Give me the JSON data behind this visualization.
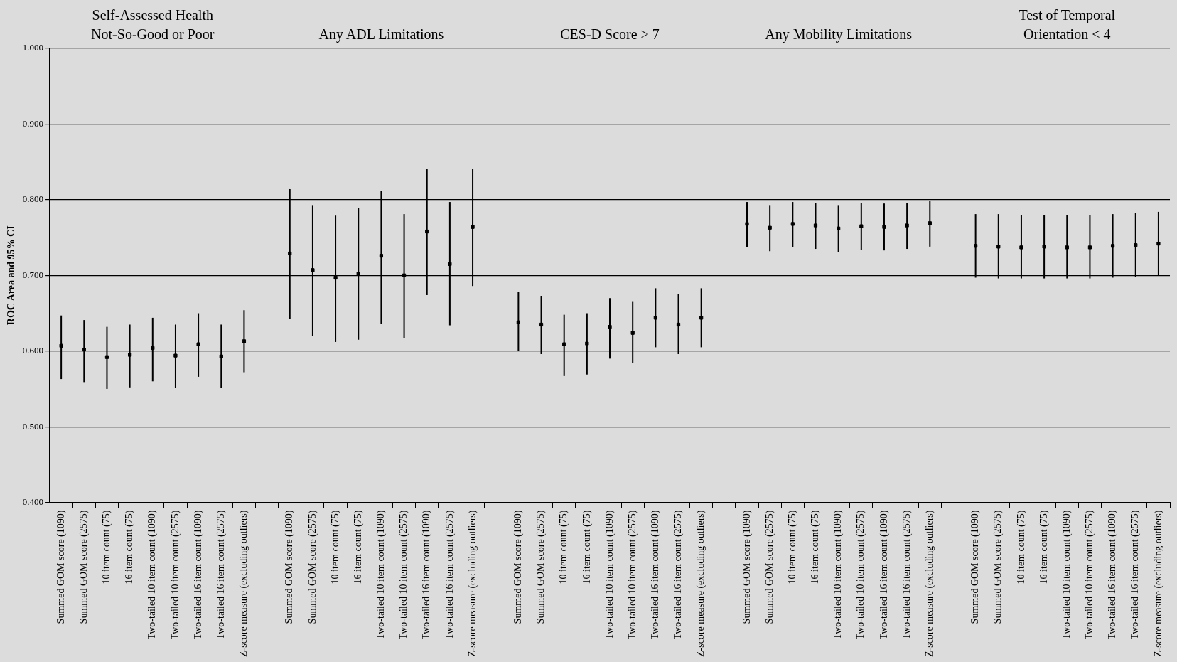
{
  "chart_data": {
    "type": "scatter",
    "ylabel": "ROC Area and 95% CI",
    "annotations": [
      "Self-Assessed Health\nNot-So-Good or Poor",
      "Any ADL Limitations",
      "CES-D Score > 7",
      "Any Mobility Limitations",
      "Test of Temporal\nOrientation < 4"
    ],
    "categories": [
      "Summed GOM score (1090)",
      "Summed GOM score (2575)",
      "10 item count (75)",
      "16 item count (75)",
      "Two-tailed 10 item count (1090)",
      "Two-tailed 10 item count (2575)",
      "Two-tailed 16 item count (1090)",
      "Two-tailed 16 item count (2575)",
      "Z-score measure (excluding outliers)",
      null,
      "Summed GOM score (1090)",
      "Summed GOM score (2575)",
      "10 item count (75)",
      "16 item count (75)",
      "Two-tailed 10 item count (1090)",
      "Two-tailed 10 item count (2575)",
      "Two-tailed 16 item count (1090)",
      "Two-tailed 16 item count (2575)",
      "Z-score measure (excluding outliers)",
      null,
      "Summed GOM score (1090)",
      "Summed GOM score (2575)",
      "10 item count (75)",
      "16 item count (75)",
      "Two-tailed 10 item count (1090)",
      "Two-tailed 10 item count (2575)",
      "Two-tailed 16 item count (1090)",
      "Two-tailed 16 item count (2575)",
      "Z-score measure (excluding outliers)",
      null,
      "Summed GOM score (1090)",
      "Summed GOM score (2575)",
      "10 item count (75)",
      "16 item count (75)",
      "Two-tailed 10 item count (1090)",
      "Two-tailed 10 item count (2575)",
      "Two-tailed 16 item count (1090)",
      "Two-tailed 16 item count (2575)",
      "Z-score measure (excluding outliers)",
      null,
      "Summed GOM score (1090)",
      "Summed GOM score (2575)",
      "10 item count (75)",
      "16 item count (75)",
      "Two-tailed 10 item count (1090)",
      "Two-tailed 10 item count (2575)",
      "Two-tailed 16 item count (1090)",
      "Two-tailed 16 item count (2575)",
      "Z-score measure (excluding outliers)"
    ],
    "color": "#000000",
    "values": [
      0.607,
      0.602,
      0.592,
      0.595,
      0.604,
      0.594,
      0.609,
      0.593,
      0.613,
      null,
      0.729,
      0.707,
      0.697,
      0.702,
      0.726,
      0.7,
      0.758,
      0.715,
      0.764,
      null,
      0.638,
      0.635,
      0.609,
      0.61,
      0.632,
      0.624,
      0.644,
      0.635,
      0.644,
      null,
      0.768,
      0.763,
      0.768,
      0.766,
      0.762,
      0.765,
      0.764,
      0.766,
      0.769,
      null,
      0.739,
      0.738,
      0.737,
      0.738,
      0.737,
      0.737,
      0.739,
      0.74,
      0.742
    ],
    "errors": [
      [
        0.563,
        0.647
      ],
      [
        0.559,
        0.641
      ],
      [
        0.55,
        0.632
      ],
      [
        0.552,
        0.635
      ],
      [
        0.56,
        0.644
      ],
      [
        0.551,
        0.635
      ],
      [
        0.566,
        0.65
      ],
      [
        0.551,
        0.635
      ],
      [
        0.572,
        0.654
      ],
      null,
      [
        0.642,
        0.814
      ],
      [
        0.62,
        0.792
      ],
      [
        0.612,
        0.779
      ],
      [
        0.615,
        0.789
      ],
      [
        0.636,
        0.812
      ],
      [
        0.617,
        0.781
      ],
      [
        0.674,
        0.841
      ],
      [
        0.634,
        0.797
      ],
      [
        0.686,
        0.841
      ],
      null,
      [
        0.6,
        0.678
      ],
      [
        0.596,
        0.673
      ],
      [
        0.567,
        0.648
      ],
      [
        0.569,
        0.65
      ],
      [
        0.59,
        0.67
      ],
      [
        0.584,
        0.665
      ],
      [
        0.605,
        0.683
      ],
      [
        0.596,
        0.675
      ],
      [
        0.605,
        0.683
      ],
      null,
      [
        0.737,
        0.797
      ],
      [
        0.732,
        0.792
      ],
      [
        0.737,
        0.797
      ],
      [
        0.735,
        0.796
      ],
      [
        0.731,
        0.792
      ],
      [
        0.734,
        0.796
      ],
      [
        0.733,
        0.795
      ],
      [
        0.735,
        0.796
      ],
      [
        0.738,
        0.798
      ],
      null,
      [
        0.697,
        0.781
      ],
      [
        0.696,
        0.781
      ],
      [
        0.696,
        0.78
      ],
      [
        0.696,
        0.78
      ],
      [
        0.696,
        0.78
      ],
      [
        0.696,
        0.78
      ],
      [
        0.697,
        0.781
      ],
      [
        0.698,
        0.782
      ],
      [
        0.7,
        0.784
      ]
    ],
    "ylim": [
      0.4,
      1.0
    ],
    "yticks": [
      {
        "value": 0.4,
        "label": "0.400"
      },
      {
        "value": 0.5,
        "label": "0.500"
      },
      {
        "value": 0.6,
        "label": "0.600"
      },
      {
        "value": 0.7,
        "label": "0.700"
      },
      {
        "value": 0.8,
        "label": "0.800"
      },
      {
        "value": 0.9,
        "label": "0.900"
      },
      {
        "value": 1.0,
        "label": "1.000"
      }
    ],
    "grid": "y",
    "legend": false,
    "marker": "square"
  }
}
